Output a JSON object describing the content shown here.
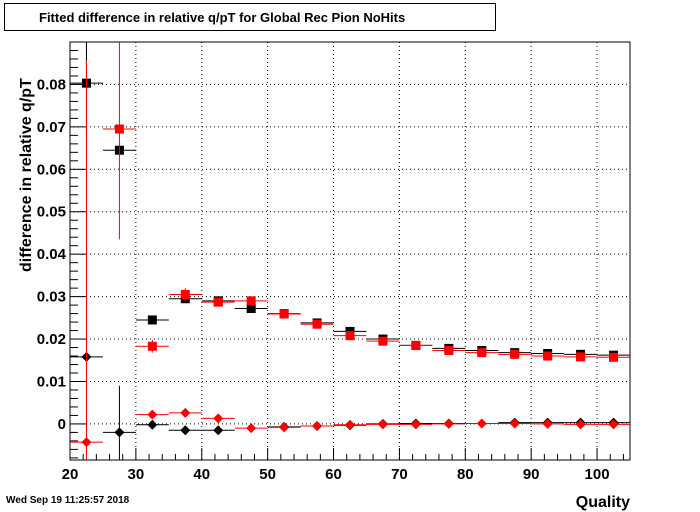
{
  "chart_data": {
    "type": "scatter",
    "title": "Fitted difference in relative q/pT for Global Rec Pion NoHits",
    "xlabel": "Quality",
    "ylabel": "difference in relative q/pT",
    "xlim": [
      20,
      105
    ],
    "ylim": [
      -0.0085,
      0.09
    ],
    "x_ticks": [
      "20",
      "30",
      "40",
      "50",
      "60",
      "70",
      "80",
      "90",
      "100"
    ],
    "y_ticks": [
      "0",
      "0.01",
      "0.02",
      "0.03",
      "0.04",
      "0.05",
      "0.06",
      "0.07",
      "0.08"
    ],
    "grid": true,
    "series": [
      {
        "color": "#000000",
        "marker": "square",
        "points": [
          {
            "x": 22.5,
            "xerr": 2.5,
            "y": 0.0803,
            "yerr": 0.012
          },
          {
            "x": 27.5,
            "xerr": 2.5,
            "y": 0.0645,
            "yerr": 0.0
          },
          {
            "x": 32.5,
            "xerr": 2.5,
            "y": 0.0245,
            "yerr": 0.001
          },
          {
            "x": 37.5,
            "xerr": 2.5,
            "y": 0.0295,
            "yerr": 0.001
          },
          {
            "x": 42.5,
            "xerr": 2.5,
            "y": 0.029,
            "yerr": 0.0005
          },
          {
            "x": 47.5,
            "xerr": 2.5,
            "y": 0.0272,
            "yerr": 0.0005
          },
          {
            "x": 52.5,
            "xerr": 2.5,
            "y": 0.026,
            "yerr": 0.0003
          },
          {
            "x": 57.5,
            "xerr": 2.5,
            "y": 0.0238,
            "yerr": 0.0003
          },
          {
            "x": 62.5,
            "xerr": 2.5,
            "y": 0.0218,
            "yerr": 0.0003
          },
          {
            "x": 67.5,
            "xerr": 2.5,
            "y": 0.02,
            "yerr": 0.0002
          },
          {
            "x": 72.5,
            "xerr": 2.5,
            "y": 0.0185,
            "yerr": 0.0002
          },
          {
            "x": 77.5,
            "xerr": 2.5,
            "y": 0.0178,
            "yerr": 0.0002
          },
          {
            "x": 82.5,
            "xerr": 2.5,
            "y": 0.0173,
            "yerr": 0.0002
          },
          {
            "x": 87.5,
            "xerr": 2.5,
            "y": 0.0168,
            "yerr": 0.0002
          },
          {
            "x": 92.5,
            "xerr": 2.5,
            "y": 0.0166,
            "yerr": 0.0002
          },
          {
            "x": 97.5,
            "xerr": 2.5,
            "y": 0.0164,
            "yerr": 0.0002
          },
          {
            "x": 102.5,
            "xerr": 2.5,
            "y": 0.0162,
            "yerr": 0.0002
          }
        ]
      },
      {
        "color": "#ff0000",
        "marker": "square",
        "points": [
          {
            "x": 27.5,
            "xerr": 2.5,
            "y": 0.0695,
            "yerr": 0.026
          },
          {
            "x": 32.5,
            "xerr": 2.5,
            "y": 0.0183,
            "yerr": 0.0015
          },
          {
            "x": 37.5,
            "xerr": 2.5,
            "y": 0.0305,
            "yerr": 0.0015
          },
          {
            "x": 42.5,
            "xerr": 2.5,
            "y": 0.0287,
            "yerr": 0.0005
          },
          {
            "x": 47.5,
            "xerr": 2.5,
            "y": 0.029,
            "yerr": 0.0005
          },
          {
            "x": 52.5,
            "xerr": 2.5,
            "y": 0.0259,
            "yerr": 0.0003
          },
          {
            "x": 57.5,
            "xerr": 2.5,
            "y": 0.0235,
            "yerr": 0.0003
          },
          {
            "x": 62.5,
            "xerr": 2.5,
            "y": 0.0208,
            "yerr": 0.0003
          },
          {
            "x": 67.5,
            "xerr": 2.5,
            "y": 0.0195,
            "yerr": 0.0002
          },
          {
            "x": 72.5,
            "xerr": 2.5,
            "y": 0.0185,
            "yerr": 0.0002
          },
          {
            "x": 77.5,
            "xerr": 2.5,
            "y": 0.0173,
            "yerr": 0.0002
          },
          {
            "x": 82.5,
            "xerr": 2.5,
            "y": 0.0168,
            "yerr": 0.0002
          },
          {
            "x": 87.5,
            "xerr": 2.5,
            "y": 0.0164,
            "yerr": 0.0002
          },
          {
            "x": 92.5,
            "xerr": 2.5,
            "y": 0.016,
            "yerr": 0.0002
          },
          {
            "x": 97.5,
            "xerr": 2.5,
            "y": 0.0158,
            "yerr": 0.0002
          },
          {
            "x": 102.5,
            "xerr": 2.5,
            "y": 0.0157,
            "yerr": 0.0002
          }
        ]
      },
      {
        "color": "#000000",
        "marker": "diamond",
        "points": [
          {
            "x": 22.5,
            "xerr": 2.5,
            "y": 0.0158,
            "yerr": 0.09
          },
          {
            "x": 27.5,
            "xerr": 2.5,
            "y": -0.002,
            "yerr": 0.011
          },
          {
            "x": 32.5,
            "xerr": 2.5,
            "y": -0.0002,
            "yerr": 0.0005
          },
          {
            "x": 37.5,
            "xerr": 2.5,
            "y": -0.0015,
            "yerr": 0.0005
          },
          {
            "x": 42.5,
            "xerr": 2.5,
            "y": -0.0015,
            "yerr": 0.0003
          },
          {
            "x": 52.5,
            "xerr": 2.5,
            "y": -0.0007,
            "yerr": 0.0002
          },
          {
            "x": 57.5,
            "xerr": 2.5,
            "y": -0.0005,
            "yerr": 0.0002
          },
          {
            "x": 62.5,
            "xerr": 2.5,
            "y": -0.0003,
            "yerr": 0.0002
          },
          {
            "x": 67.5,
            "xerr": 2.5,
            "y": 0.0,
            "yerr": 0.0002
          },
          {
            "x": 72.5,
            "xerr": 2.5,
            "y": 0.0001,
            "yerr": 0.0002
          },
          {
            "x": 77.5,
            "xerr": 2.5,
            "y": 0.0001,
            "yerr": 0.0002
          },
          {
            "x": 87.5,
            "xerr": 2.5,
            "y": 0.0003,
            "yerr": 0.0002
          },
          {
            "x": 92.5,
            "xerr": 2.5,
            "y": 0.0003,
            "yerr": 0.0002
          },
          {
            "x": 97.5,
            "xerr": 2.5,
            "y": 0.0003,
            "yerr": 0.0002
          },
          {
            "x": 102.5,
            "xerr": 2.5,
            "y": 0.0003,
            "yerr": 0.0002
          }
        ]
      },
      {
        "color": "#ff0000",
        "marker": "diamond",
        "points": [
          {
            "x": 22.5,
            "xerr": 2.5,
            "y": -0.0043,
            "yerr": 0.09
          },
          {
            "x": 32.5,
            "xerr": 2.5,
            "y": 0.0022,
            "yerr": 0.0005
          },
          {
            "x": 37.5,
            "xerr": 2.5,
            "y": 0.0026,
            "yerr": 0.0005
          },
          {
            "x": 42.5,
            "xerr": 2.5,
            "y": 0.0013,
            "yerr": 0.0003
          },
          {
            "x": 47.5,
            "xerr": 2.5,
            "y": -0.001,
            "yerr": 0.0002
          },
          {
            "x": 52.5,
            "xerr": 2.5,
            "y": -0.0008,
            "yerr": 0.0002
          },
          {
            "x": 57.5,
            "xerr": 2.5,
            "y": -0.0005,
            "yerr": 0.0002
          },
          {
            "x": 62.5,
            "xerr": 2.5,
            "y": -0.0002,
            "yerr": 0.0002
          },
          {
            "x": 67.5,
            "xerr": 2.5,
            "y": -0.0001,
            "yerr": 0.0002
          },
          {
            "x": 72.5,
            "xerr": 2.5,
            "y": -0.0001,
            "yerr": 0.0002
          },
          {
            "x": 77.5,
            "xerr": 2.5,
            "y": 0.0,
            "yerr": 0.0002
          },
          {
            "x": 82.5,
            "xerr": 2.5,
            "y": 0.0001,
            "yerr": 0.0002
          },
          {
            "x": 87.5,
            "xerr": 2.5,
            "y": 0.0001,
            "yerr": 0.0002
          },
          {
            "x": 92.5,
            "xerr": 2.5,
            "y": 0.0,
            "yerr": 0.0002
          },
          {
            "x": 97.5,
            "xerr": 2.5,
            "y": -0.0001,
            "yerr": 0.0002
          },
          {
            "x": 102.5,
            "xerr": 2.5,
            "y": -0.0001,
            "yerr": 0.0002
          }
        ]
      }
    ]
  },
  "footer": {
    "timestamp": "Wed Sep 19 11:25:57 2018"
  }
}
